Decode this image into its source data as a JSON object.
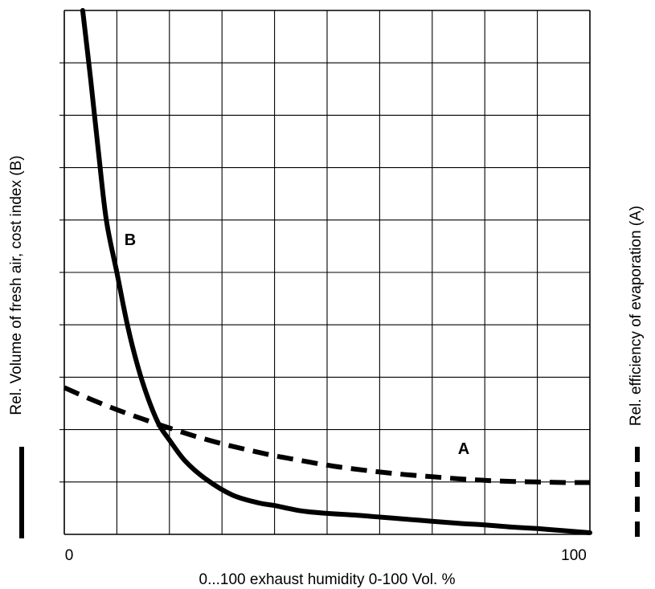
{
  "chart_data": {
    "type": "line",
    "xlabel": "0...100 exhaust humidity 0-100 Vol. %",
    "ylabel_left": "Rel. Volume of fresh air, cost index (B)",
    "ylabel_right": "Rel. efficiency of evaporation (A)",
    "x_tick_labels": [
      "0",
      "100"
    ],
    "xlim": [
      0,
      100
    ],
    "ylim": [
      0,
      100
    ],
    "grid": true,
    "series": [
      {
        "name": "B",
        "style": "solid",
        "color": "#000000",
        "x": [
          3.5,
          5,
          6.5,
          8,
          10,
          12,
          14,
          16,
          18,
          20,
          23,
          27,
          32,
          37,
          40,
          45,
          50,
          55,
          60,
          65,
          70,
          75,
          80,
          85,
          90,
          95,
          100
        ],
        "y": [
          100,
          87,
          73,
          60,
          50,
          40,
          32,
          25.8,
          21,
          18,
          14,
          10.5,
          7.5,
          6,
          5.5,
          4.5,
          4,
          3.7,
          3.3,
          2.9,
          2.5,
          2.1,
          1.8,
          1.4,
          1.1,
          0.7,
          0.3
        ]
      },
      {
        "name": "A",
        "style": "dashed",
        "color": "#000000",
        "x": [
          0,
          5,
          10,
          15,
          20,
          25,
          30,
          35,
          40,
          45,
          50,
          55,
          60,
          65,
          70,
          75,
          80,
          85,
          90,
          95,
          100
        ],
        "y": [
          28,
          25.8,
          23.8,
          22,
          20.3,
          18.7,
          17.3,
          16.1,
          15,
          14.1,
          13.2,
          12.5,
          11.9,
          11.4,
          11,
          10.6,
          10.3,
          10.1,
          10,
          9.9,
          9.9
        ]
      }
    ],
    "curve_labels": [
      {
        "text": "B",
        "series": "B"
      },
      {
        "text": "A",
        "series": "A"
      }
    ],
    "legend_left": {
      "style": "solid"
    },
    "legend_right": {
      "style": "dashed"
    }
  }
}
